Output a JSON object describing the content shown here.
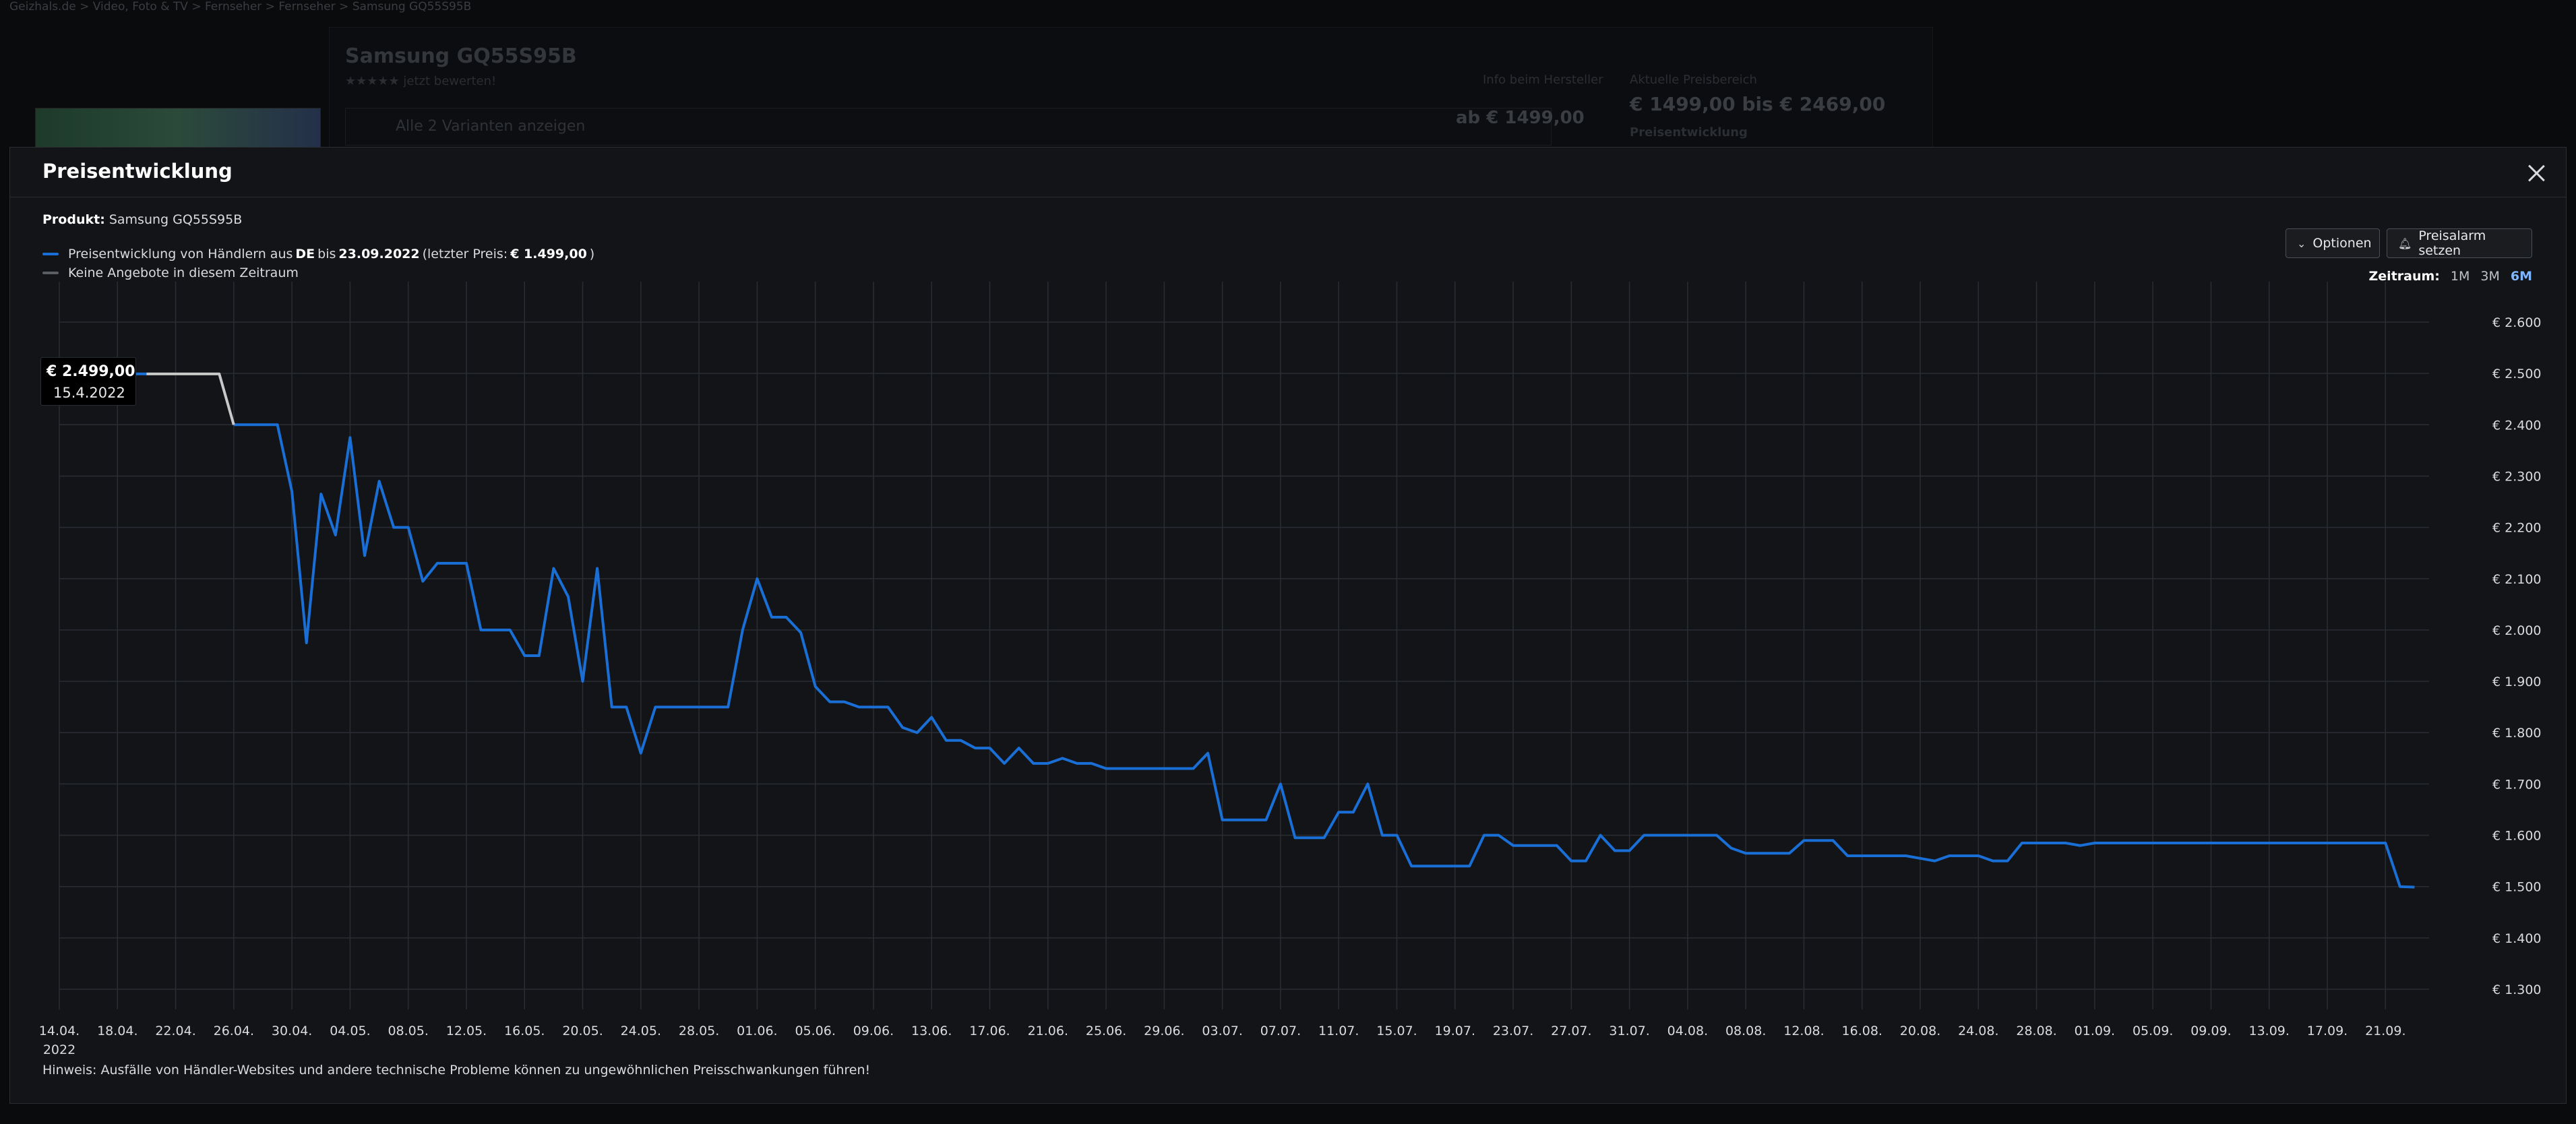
{
  "background": {
    "breadcrumb": "Geizhals.de  >  Video, Foto & TV  >  Fernseher  >  Fernseher  >  Samsung GQ55S95B",
    "title": "Samsung GQ55S95B",
    "rating_text": "★★★★★ jetzt bewerten!",
    "variants_text": "Alle 2 Varianten anzeigen",
    "price_from": "ab € 1499,00",
    "info_text": "Info beim Hersteller",
    "current_prices_label": "Aktuelle Preisbereich",
    "current_prices": "€ 1499,00 bis € 2469,00",
    "price_dev_label": "Preisentwicklung"
  },
  "modal": {
    "title": "Preisentwicklung",
    "product_label": "Produkt:",
    "product_name": "Samsung GQ55S95B",
    "legend_main_pre": "Preisentwicklung von Händlern aus",
    "legend_main_country": "DE",
    "legend_main_mid": "bis",
    "legend_main_date": "23.09.2022",
    "legend_main_last_pre": "(letzter Preis:",
    "legend_main_last_price": "€ 1.499,00",
    "legend_main_last_post": ")",
    "legend_none": "Keine Angebote in diesem Zeitraum",
    "btn_optionen": "Optionen",
    "btn_alarm": "Preisalarm setzen",
    "zeitraum_label": "Zeitraum:",
    "zeitraum_options": [
      "1M",
      "3M",
      "6M"
    ],
    "zeitraum_active": "6M",
    "hint": "Hinweis: Ausfälle von Händler-Websites und andere technische Probleme können zu ungewöhnlichen Preisschwankungen führen!",
    "tooltip_price": "€ 2.499,00",
    "tooltip_date": "15.4.2022"
  },
  "colors": {
    "series_main": "#1a6fd6",
    "series_none": "#c8c8c8",
    "grid": "#2a2d33"
  },
  "chart_data": {
    "type": "line",
    "title": "",
    "xlabel": "",
    "ylabel": "",
    "ylim": [
      1300,
      2600
    ],
    "y_ticks": [
      "€ 1.300",
      "€ 1.400",
      "€ 1.500",
      "€ 1.600",
      "€ 1.700",
      "€ 1.800",
      "€ 1.900",
      "€ 2.000",
      "€ 2.100",
      "€ 2.200",
      "€ 2.300",
      "€ 2.400",
      "€ 2.500",
      "€ 2.600"
    ],
    "y_tick_values": [
      1300,
      1400,
      1500,
      1600,
      1700,
      1800,
      1900,
      2000,
      2100,
      2200,
      2300,
      2400,
      2500,
      2600
    ],
    "x_range": [
      "2022-04-14",
      "2022-09-24"
    ],
    "x_ticks": [
      {
        "label": "14.04.",
        "sub": "2022",
        "date": "2022-04-14"
      },
      {
        "label": "18.04.",
        "date": "2022-04-18"
      },
      {
        "label": "22.04.",
        "date": "2022-04-22"
      },
      {
        "label": "26.04.",
        "date": "2022-04-26"
      },
      {
        "label": "30.04.",
        "date": "2022-04-30"
      },
      {
        "label": "04.05.",
        "date": "2022-05-04"
      },
      {
        "label": "08.05.",
        "date": "2022-05-08"
      },
      {
        "label": "12.05.",
        "date": "2022-05-12"
      },
      {
        "label": "16.05.",
        "date": "2022-05-16"
      },
      {
        "label": "20.05.",
        "date": "2022-05-20"
      },
      {
        "label": "24.05.",
        "date": "2022-05-24"
      },
      {
        "label": "28.05.",
        "date": "2022-05-28"
      },
      {
        "label": "01.06.",
        "date": "2022-06-01"
      },
      {
        "label": "05.06.",
        "date": "2022-06-05"
      },
      {
        "label": "09.06.",
        "date": "2022-06-09"
      },
      {
        "label": "13.06.",
        "date": "2022-06-13"
      },
      {
        "label": "17.06.",
        "date": "2022-06-17"
      },
      {
        "label": "21.06.",
        "date": "2022-06-21"
      },
      {
        "label": "25.06.",
        "date": "2022-06-25"
      },
      {
        "label": "29.06.",
        "date": "2022-06-29"
      },
      {
        "label": "03.07.",
        "date": "2022-07-03"
      },
      {
        "label": "07.07.",
        "date": "2022-07-07"
      },
      {
        "label": "11.07.",
        "date": "2022-07-11"
      },
      {
        "label": "15.07.",
        "date": "2022-07-15"
      },
      {
        "label": "19.07.",
        "date": "2022-07-19"
      },
      {
        "label": "23.07.",
        "date": "2022-07-23"
      },
      {
        "label": "27.07.",
        "date": "2022-07-27"
      },
      {
        "label": "31.07.",
        "date": "2022-07-31"
      },
      {
        "label": "04.08.",
        "date": "2022-08-04"
      },
      {
        "label": "08.08.",
        "date": "2022-08-08"
      },
      {
        "label": "12.08.",
        "date": "2022-08-12"
      },
      {
        "label": "16.08.",
        "date": "2022-08-16"
      },
      {
        "label": "20.08.",
        "date": "2022-08-20"
      },
      {
        "label": "24.08.",
        "date": "2022-08-24"
      },
      {
        "label": "28.08.",
        "date": "2022-08-28"
      },
      {
        "label": "01.09.",
        "date": "2022-09-01"
      },
      {
        "label": "05.09.",
        "date": "2022-09-05"
      },
      {
        "label": "09.09.",
        "date": "2022-09-09"
      },
      {
        "label": "13.09.",
        "date": "2022-09-13"
      },
      {
        "label": "17.09.",
        "date": "2022-09-17"
      },
      {
        "label": "21.09.",
        "date": "2022-09-21"
      }
    ],
    "grid": true,
    "legend_position": "top-left",
    "series": [
      {
        "name": "Preisentwicklung von Händlern aus DE",
        "segments": [
          [
            [
              "2022-04-14",
              2499
            ],
            [
              "2022-04-20",
              2499
            ]
          ],
          [
            [
              "2022-04-26",
              2400
            ],
            [
              "2022-04-27",
              2400
            ],
            [
              "2022-04-28",
              2400
            ],
            [
              "2022-04-29",
              2400
            ],
            [
              "2022-04-30",
              2270
            ],
            [
              "2022-05-01",
              1975
            ],
            [
              "2022-05-02",
              2265
            ],
            [
              "2022-05-03",
              2185
            ],
            [
              "2022-05-04",
              2375
            ],
            [
              "2022-05-05",
              2145
            ],
            [
              "2022-05-06",
              2290
            ],
            [
              "2022-05-07",
              2200
            ],
            [
              "2022-05-08",
              2200
            ],
            [
              "2022-05-09",
              2095
            ],
            [
              "2022-05-10",
              2130
            ],
            [
              "2022-05-11",
              2130
            ],
            [
              "2022-05-12",
              2130
            ],
            [
              "2022-05-13",
              2000
            ],
            [
              "2022-05-14",
              2000
            ],
            [
              "2022-05-15",
              2000
            ],
            [
              "2022-05-16",
              1950
            ],
            [
              "2022-05-17",
              1950
            ],
            [
              "2022-05-18",
              2120
            ],
            [
              "2022-05-19",
              2065
            ],
            [
              "2022-05-20",
              1900
            ],
            [
              "2022-05-21",
              2120
            ],
            [
              "2022-05-22",
              1850
            ],
            [
              "2022-05-23",
              1850
            ],
            [
              "2022-05-24",
              1760
            ],
            [
              "2022-05-25",
              1850
            ],
            [
              "2022-05-26",
              1850
            ],
            [
              "2022-05-27",
              1850
            ],
            [
              "2022-05-28",
              1850
            ],
            [
              "2022-05-29",
              1850
            ],
            [
              "2022-05-30",
              1850
            ],
            [
              "2022-05-31",
              2000
            ],
            [
              "2022-06-01",
              2100
            ],
            [
              "2022-06-02",
              2025
            ],
            [
              "2022-06-03",
              2025
            ],
            [
              "2022-06-04",
              1995
            ],
            [
              "2022-06-05",
              1890
            ],
            [
              "2022-06-06",
              1860
            ],
            [
              "2022-06-07",
              1860
            ],
            [
              "2022-06-08",
              1850
            ],
            [
              "2022-06-09",
              1850
            ],
            [
              "2022-06-10",
              1850
            ],
            [
              "2022-06-11",
              1810
            ],
            [
              "2022-06-12",
              1800
            ],
            [
              "2022-06-13",
              1830
            ],
            [
              "2022-06-14",
              1785
            ],
            [
              "2022-06-15",
              1785
            ],
            [
              "2022-06-16",
              1770
            ],
            [
              "2022-06-17",
              1770
            ],
            [
              "2022-06-18",
              1740
            ],
            [
              "2022-06-19",
              1770
            ],
            [
              "2022-06-20",
              1740
            ],
            [
              "2022-06-21",
              1740
            ],
            [
              "2022-06-22",
              1750
            ],
            [
              "2022-06-23",
              1740
            ],
            [
              "2022-06-24",
              1740
            ],
            [
              "2022-06-25",
              1730
            ],
            [
              "2022-06-26",
              1730
            ],
            [
              "2022-06-27",
              1730
            ],
            [
              "2022-06-28",
              1730
            ],
            [
              "2022-06-29",
              1730
            ],
            [
              "2022-06-30",
              1730
            ],
            [
              "2022-07-01",
              1730
            ],
            [
              "2022-07-02",
              1760
            ],
            [
              "2022-07-03",
              1630
            ],
            [
              "2022-07-04",
              1630
            ],
            [
              "2022-07-05",
              1630
            ],
            [
              "2022-07-06",
              1630
            ],
            [
              "2022-07-07",
              1700
            ],
            [
              "2022-07-08",
              1595
            ],
            [
              "2022-07-09",
              1595
            ],
            [
              "2022-07-10",
              1595
            ],
            [
              "2022-07-11",
              1645
            ],
            [
              "2022-07-12",
              1645
            ],
            [
              "2022-07-13",
              1700
            ],
            [
              "2022-07-14",
              1600
            ],
            [
              "2022-07-15",
              1600
            ],
            [
              "2022-07-16",
              1540
            ],
            [
              "2022-07-17",
              1540
            ],
            [
              "2022-07-18",
              1540
            ],
            [
              "2022-07-19",
              1540
            ],
            [
              "2022-07-20",
              1540
            ],
            [
              "2022-07-21",
              1600
            ],
            [
              "2022-07-22",
              1600
            ],
            [
              "2022-07-23",
              1580
            ],
            [
              "2022-07-24",
              1580
            ],
            [
              "2022-07-25",
              1580
            ],
            [
              "2022-07-26",
              1580
            ],
            [
              "2022-07-27",
              1550
            ],
            [
              "2022-07-28",
              1550
            ],
            [
              "2022-07-29",
              1600
            ],
            [
              "2022-07-30",
              1570
            ],
            [
              "2022-07-31",
              1570
            ],
            [
              "2022-08-01",
              1600
            ],
            [
              "2022-08-02",
              1600
            ],
            [
              "2022-08-03",
              1600
            ],
            [
              "2022-08-04",
              1600
            ],
            [
              "2022-08-05",
              1600
            ],
            [
              "2022-08-06",
              1600
            ],
            [
              "2022-08-07",
              1575
            ],
            [
              "2022-08-08",
              1565
            ],
            [
              "2022-08-09",
              1565
            ],
            [
              "2022-08-10",
              1565
            ],
            [
              "2022-08-11",
              1565
            ],
            [
              "2022-08-12",
              1590
            ],
            [
              "2022-08-13",
              1590
            ],
            [
              "2022-08-14",
              1590
            ],
            [
              "2022-08-15",
              1560
            ],
            [
              "2022-08-16",
              1560
            ],
            [
              "2022-08-17",
              1560
            ],
            [
              "2022-08-18",
              1560
            ],
            [
              "2022-08-19",
              1560
            ],
            [
              "2022-08-20",
              1555
            ],
            [
              "2022-08-21",
              1550
            ],
            [
              "2022-08-22",
              1560
            ],
            [
              "2022-08-23",
              1560
            ],
            [
              "2022-08-24",
              1560
            ],
            [
              "2022-08-25",
              1550
            ],
            [
              "2022-08-26",
              1550
            ],
            [
              "2022-08-27",
              1585
            ],
            [
              "2022-08-28",
              1585
            ],
            [
              "2022-08-29",
              1585
            ],
            [
              "2022-08-30",
              1585
            ],
            [
              "2022-08-31",
              1580
            ],
            [
              "2022-09-01",
              1585
            ],
            [
              "2022-09-02",
              1585
            ],
            [
              "2022-09-03",
              1585
            ],
            [
              "2022-09-04",
              1585
            ],
            [
              "2022-09-05",
              1585
            ],
            [
              "2022-09-06",
              1585
            ],
            [
              "2022-09-07",
              1585
            ],
            [
              "2022-09-08",
              1585
            ],
            [
              "2022-09-09",
              1585
            ],
            [
              "2022-09-10",
              1585
            ],
            [
              "2022-09-11",
              1585
            ],
            [
              "2022-09-12",
              1585
            ],
            [
              "2022-09-13",
              1585
            ],
            [
              "2022-09-14",
              1585
            ],
            [
              "2022-09-15",
              1585
            ],
            [
              "2022-09-16",
              1585
            ],
            [
              "2022-09-17",
              1585
            ],
            [
              "2022-09-18",
              1585
            ],
            [
              "2022-09-19",
              1585
            ],
            [
              "2022-09-20",
              1585
            ],
            [
              "2022-09-21",
              1585
            ],
            [
              "2022-09-22",
              1500
            ],
            [
              "2022-09-23",
              1499
            ]
          ]
        ]
      },
      {
        "name": "Keine Angebote in diesem Zeitraum",
        "segments": [
          [
            [
              "2022-04-20",
              2499
            ],
            [
              "2022-04-25",
              2499
            ],
            [
              "2022-04-26",
              2400
            ]
          ]
        ]
      }
    ],
    "tooltip": {
      "date": "2022-04-15",
      "value": 2499
    }
  }
}
